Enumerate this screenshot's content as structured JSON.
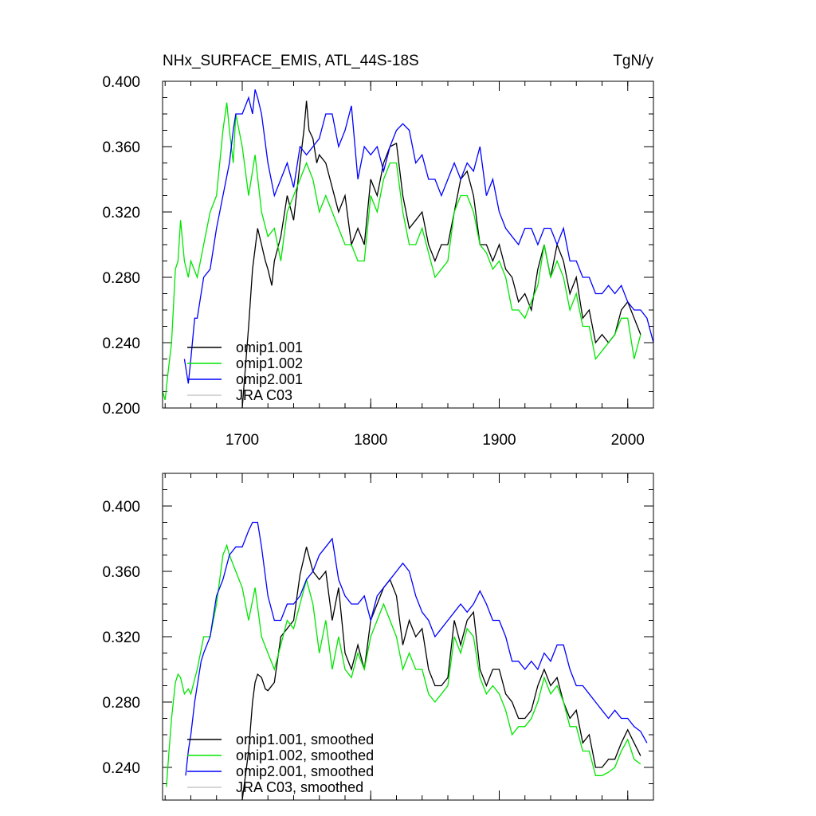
{
  "header": {
    "title": "NHx_SURFACE_EMIS, ATL_44S-18S",
    "units": "TgN/y"
  },
  "chart_data": [
    {
      "type": "line",
      "panel": "top",
      "xlim": [
        1638,
        2020
      ],
      "ylim": [
        0.2,
        0.4
      ],
      "xticks": [
        1700,
        1800,
        1900,
        2000
      ],
      "yticks": [
        0.2,
        0.24,
        0.28,
        0.32,
        0.36,
        0.4
      ],
      "xticklabels": [
        "1700",
        "1800",
        "1900",
        "2000"
      ],
      "yticklabels": [
        "0.200",
        "0.240",
        "0.280",
        "0.320",
        "0.360",
        "0.400"
      ],
      "legend_position": "bottom-left",
      "series": [
        {
          "name": "omip1.001",
          "color": "#000000",
          "x": [
            1700,
            1705,
            1708,
            1712,
            1715,
            1718,
            1720,
            1723,
            1725,
            1730,
            1735,
            1740,
            1745,
            1748,
            1750,
            1752,
            1755,
            1758,
            1760,
            1765,
            1770,
            1775,
            1780,
            1785,
            1790,
            1795,
            1800,
            1805,
            1810,
            1815,
            1820,
            1825,
            1830,
            1835,
            1840,
            1845,
            1850,
            1855,
            1860,
            1865,
            1870,
            1875,
            1880,
            1885,
            1890,
            1895,
            1900,
            1905,
            1910,
            1915,
            1920,
            1925,
            1930,
            1935,
            1940,
            1945,
            1950,
            1955,
            1960,
            1965,
            1970,
            1975,
            1980,
            1985,
            1990,
            1995,
            2000,
            2005,
            2010
          ],
          "y": [
            0.2,
            0.25,
            0.285,
            0.31,
            0.3,
            0.29,
            0.285,
            0.275,
            0.29,
            0.305,
            0.33,
            0.315,
            0.35,
            0.37,
            0.388,
            0.37,
            0.365,
            0.35,
            0.355,
            0.35,
            0.335,
            0.32,
            0.33,
            0.3,
            0.31,
            0.3,
            0.34,
            0.33,
            0.35,
            0.36,
            0.362,
            0.33,
            0.31,
            0.315,
            0.32,
            0.3,
            0.29,
            0.3,
            0.3,
            0.32,
            0.34,
            0.345,
            0.33,
            0.3,
            0.3,
            0.29,
            0.3,
            0.285,
            0.28,
            0.265,
            0.27,
            0.26,
            0.285,
            0.3,
            0.28,
            0.3,
            0.29,
            0.27,
            0.28,
            0.255,
            0.26,
            0.24,
            0.245,
            0.24,
            0.245,
            0.26,
            0.265,
            0.255,
            0.245
          ]
        },
        {
          "name": "omip1.002",
          "color": "#00e600",
          "x": [
            1638,
            1640,
            1642,
            1645,
            1648,
            1650,
            1652,
            1655,
            1658,
            1660,
            1665,
            1670,
            1675,
            1680,
            1685,
            1688,
            1690,
            1693,
            1695,
            1700,
            1705,
            1710,
            1715,
            1720,
            1725,
            1730,
            1735,
            1740,
            1745,
            1750,
            1755,
            1760,
            1765,
            1770,
            1775,
            1780,
            1785,
            1790,
            1795,
            1800,
            1805,
            1810,
            1815,
            1820,
            1825,
            1830,
            1835,
            1840,
            1845,
            1850,
            1855,
            1860,
            1865,
            1870,
            1875,
            1880,
            1885,
            1890,
            1895,
            1900,
            1905,
            1910,
            1915,
            1920,
            1925,
            1930,
            1935,
            1940,
            1945,
            1950,
            1955,
            1960,
            1965,
            1970,
            1975,
            1980,
            1985,
            1990,
            1995,
            2000,
            2005,
            2010
          ],
          "y": [
            0.21,
            0.205,
            0.22,
            0.24,
            0.285,
            0.29,
            0.315,
            0.29,
            0.28,
            0.29,
            0.28,
            0.3,
            0.32,
            0.33,
            0.37,
            0.387,
            0.37,
            0.35,
            0.38,
            0.36,
            0.33,
            0.355,
            0.32,
            0.305,
            0.31,
            0.29,
            0.32,
            0.33,
            0.34,
            0.35,
            0.34,
            0.32,
            0.33,
            0.32,
            0.31,
            0.3,
            0.3,
            0.29,
            0.29,
            0.33,
            0.32,
            0.34,
            0.35,
            0.35,
            0.32,
            0.3,
            0.3,
            0.31,
            0.295,
            0.28,
            0.285,
            0.29,
            0.32,
            0.33,
            0.33,
            0.32,
            0.3,
            0.295,
            0.285,
            0.29,
            0.28,
            0.26,
            0.26,
            0.255,
            0.265,
            0.275,
            0.3,
            0.28,
            0.29,
            0.28,
            0.26,
            0.27,
            0.25,
            0.25,
            0.23,
            0.235,
            0.24,
            0.245,
            0.255,
            0.255,
            0.23,
            0.245
          ]
        },
        {
          "name": "omip2.001",
          "color": "#0000ff",
          "x": [
            1655,
            1658,
            1660,
            1663,
            1665,
            1670,
            1675,
            1680,
            1685,
            1690,
            1693,
            1695,
            1700,
            1705,
            1708,
            1710,
            1712,
            1715,
            1720,
            1725,
            1730,
            1735,
            1740,
            1745,
            1750,
            1755,
            1760,
            1765,
            1770,
            1775,
            1780,
            1785,
            1790,
            1795,
            1800,
            1805,
            1810,
            1815,
            1820,
            1825,
            1830,
            1835,
            1840,
            1845,
            1850,
            1855,
            1860,
            1865,
            1870,
            1875,
            1880,
            1885,
            1890,
            1895,
            1900,
            1905,
            1910,
            1915,
            1920,
            1925,
            1930,
            1935,
            1940,
            1945,
            1950,
            1955,
            1960,
            1965,
            1970,
            1975,
            1980,
            1985,
            1990,
            1995,
            2000,
            2005,
            2010,
            2015,
            2020
          ],
          "y": [
            0.23,
            0.215,
            0.23,
            0.255,
            0.255,
            0.28,
            0.285,
            0.31,
            0.33,
            0.35,
            0.37,
            0.38,
            0.38,
            0.39,
            0.38,
            0.395,
            0.39,
            0.38,
            0.35,
            0.33,
            0.34,
            0.35,
            0.335,
            0.36,
            0.355,
            0.36,
            0.365,
            0.38,
            0.38,
            0.36,
            0.37,
            0.385,
            0.34,
            0.36,
            0.355,
            0.36,
            0.345,
            0.36,
            0.37,
            0.374,
            0.37,
            0.35,
            0.355,
            0.34,
            0.34,
            0.33,
            0.34,
            0.35,
            0.34,
            0.35,
            0.345,
            0.36,
            0.33,
            0.34,
            0.32,
            0.31,
            0.305,
            0.3,
            0.31,
            0.31,
            0.3,
            0.31,
            0.31,
            0.3,
            0.31,
            0.29,
            0.29,
            0.28,
            0.28,
            0.27,
            0.27,
            0.275,
            0.27,
            0.275,
            0.265,
            0.26,
            0.26,
            0.255,
            0.24
          ]
        },
        {
          "name": "JRA C03",
          "color": "#c8c8c8",
          "x": [],
          "y": []
        }
      ]
    },
    {
      "type": "line",
      "panel": "bottom",
      "xlim": [
        1638,
        2020
      ],
      "ylim": [
        0.22,
        0.42
      ],
      "xticks": [
        1700,
        1800,
        1900,
        2000
      ],
      "yticks": [
        0.24,
        0.28,
        0.32,
        0.36,
        0.4
      ],
      "xticklabels": [],
      "yticklabels": [
        "0.240",
        "0.280",
        "0.320",
        "0.360",
        "0.400"
      ],
      "legend_position": "bottom-left",
      "series": [
        {
          "name": "omip1.001, smoothed",
          "color": "#000000",
          "x": [
            1700,
            1705,
            1708,
            1710,
            1712,
            1715,
            1718,
            1720,
            1725,
            1730,
            1735,
            1740,
            1745,
            1750,
            1755,
            1760,
            1765,
            1770,
            1775,
            1780,
            1785,
            1790,
            1795,
            1800,
            1805,
            1810,
            1815,
            1820,
            1825,
            1830,
            1835,
            1840,
            1845,
            1850,
            1855,
            1860,
            1865,
            1870,
            1875,
            1880,
            1885,
            1890,
            1895,
            1900,
            1905,
            1910,
            1915,
            1920,
            1925,
            1930,
            1935,
            1940,
            1945,
            1950,
            1955,
            1960,
            1965,
            1970,
            1975,
            1980,
            1985,
            1990,
            1995,
            2000,
            2005,
            2010
          ],
          "y": [
            0.22,
            0.25,
            0.28,
            0.292,
            0.297,
            0.295,
            0.288,
            0.287,
            0.292,
            0.32,
            0.325,
            0.33,
            0.358,
            0.375,
            0.36,
            0.355,
            0.36,
            0.33,
            0.35,
            0.31,
            0.3,
            0.315,
            0.3,
            0.33,
            0.34,
            0.35,
            0.355,
            0.345,
            0.315,
            0.33,
            0.32,
            0.325,
            0.3,
            0.29,
            0.29,
            0.295,
            0.33,
            0.315,
            0.33,
            0.335,
            0.3,
            0.29,
            0.3,
            0.3,
            0.285,
            0.28,
            0.27,
            0.27,
            0.275,
            0.29,
            0.3,
            0.29,
            0.295,
            0.28,
            0.27,
            0.275,
            0.255,
            0.26,
            0.24,
            0.24,
            0.245,
            0.245,
            0.255,
            0.263,
            0.255,
            0.247
          ]
        },
        {
          "name": "omip1.002, smoothed",
          "color": "#00e600",
          "x": [
            1641,
            1643,
            1645,
            1648,
            1650,
            1652,
            1655,
            1658,
            1660,
            1665,
            1670,
            1675,
            1680,
            1685,
            1688,
            1690,
            1695,
            1700,
            1705,
            1710,
            1715,
            1720,
            1725,
            1730,
            1735,
            1740,
            1745,
            1750,
            1755,
            1760,
            1765,
            1770,
            1775,
            1780,
            1785,
            1790,
            1795,
            1800,
            1805,
            1810,
            1815,
            1820,
            1825,
            1830,
            1835,
            1840,
            1845,
            1850,
            1855,
            1860,
            1865,
            1870,
            1875,
            1880,
            1885,
            1890,
            1895,
            1900,
            1905,
            1910,
            1915,
            1920,
            1925,
            1930,
            1935,
            1940,
            1945,
            1950,
            1955,
            1960,
            1965,
            1970,
            1975,
            1980,
            1985,
            1990,
            1995,
            2000,
            2005,
            2010
          ],
          "y": [
            0.228,
            0.25,
            0.27,
            0.292,
            0.297,
            0.295,
            0.285,
            0.288,
            0.285,
            0.3,
            0.32,
            0.32,
            0.34,
            0.37,
            0.376,
            0.37,
            0.36,
            0.35,
            0.33,
            0.35,
            0.32,
            0.31,
            0.3,
            0.315,
            0.33,
            0.325,
            0.34,
            0.355,
            0.34,
            0.31,
            0.33,
            0.3,
            0.32,
            0.3,
            0.295,
            0.31,
            0.3,
            0.32,
            0.33,
            0.34,
            0.33,
            0.32,
            0.3,
            0.31,
            0.3,
            0.3,
            0.285,
            0.28,
            0.285,
            0.29,
            0.32,
            0.31,
            0.325,
            0.32,
            0.295,
            0.285,
            0.29,
            0.285,
            0.275,
            0.26,
            0.265,
            0.265,
            0.27,
            0.28,
            0.295,
            0.285,
            0.29,
            0.28,
            0.265,
            0.265,
            0.25,
            0.25,
            0.235,
            0.235,
            0.237,
            0.24,
            0.25,
            0.257,
            0.245,
            0.242
          ]
        },
        {
          "name": "omip2.001, smoothed",
          "color": "#0000ff",
          "x": [
            1656,
            1658,
            1660,
            1663,
            1665,
            1668,
            1670,
            1675,
            1680,
            1685,
            1690,
            1695,
            1700,
            1705,
            1708,
            1712,
            1715,
            1720,
            1725,
            1730,
            1735,
            1740,
            1745,
            1750,
            1755,
            1760,
            1765,
            1770,
            1775,
            1780,
            1785,
            1790,
            1795,
            1800,
            1805,
            1810,
            1815,
            1820,
            1825,
            1830,
            1835,
            1840,
            1845,
            1850,
            1855,
            1860,
            1865,
            1870,
            1875,
            1880,
            1885,
            1890,
            1895,
            1900,
            1905,
            1910,
            1915,
            1920,
            1925,
            1930,
            1935,
            1940,
            1945,
            1950,
            1955,
            1960,
            1965,
            1970,
            1975,
            1980,
            1985,
            1990,
            1995,
            2000,
            2005,
            2010,
            2015
          ],
          "y": [
            0.235,
            0.25,
            0.26,
            0.28,
            0.29,
            0.305,
            0.31,
            0.32,
            0.345,
            0.355,
            0.37,
            0.375,
            0.375,
            0.385,
            0.39,
            0.39,
            0.375,
            0.345,
            0.33,
            0.33,
            0.34,
            0.34,
            0.345,
            0.355,
            0.36,
            0.37,
            0.375,
            0.38,
            0.355,
            0.345,
            0.34,
            0.34,
            0.345,
            0.33,
            0.345,
            0.35,
            0.355,
            0.36,
            0.365,
            0.36,
            0.345,
            0.335,
            0.33,
            0.32,
            0.325,
            0.33,
            0.335,
            0.34,
            0.335,
            0.34,
            0.348,
            0.34,
            0.33,
            0.33,
            0.32,
            0.305,
            0.305,
            0.3,
            0.305,
            0.3,
            0.31,
            0.305,
            0.315,
            0.315,
            0.3,
            0.29,
            0.29,
            0.285,
            0.28,
            0.275,
            0.27,
            0.275,
            0.27,
            0.27,
            0.265,
            0.262,
            0.255
          ]
        },
        {
          "name": "JRA C03, smoothed",
          "color": "#c8c8c8",
          "x": [],
          "y": []
        }
      ]
    }
  ]
}
